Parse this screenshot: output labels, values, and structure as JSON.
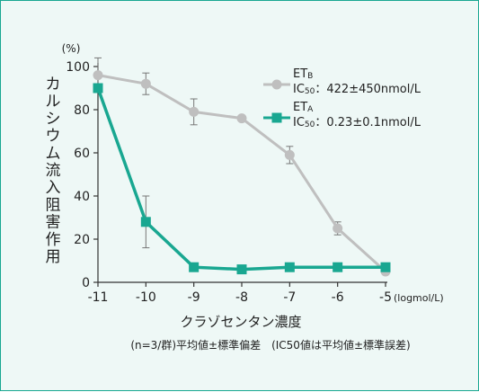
{
  "chart_data": {
    "type": "line",
    "ylabel": "カルシウム流入阻害作用",
    "yunit": "(%)",
    "xlabel": "クラゾセンタン濃度",
    "xunit": "(logmol/L)",
    "x": [
      -11,
      -10,
      -9,
      -8,
      -7,
      -6,
      -5
    ],
    "xticks": [
      "-11",
      "-10",
      "-9",
      "-8",
      "-7",
      "-6",
      "-5"
    ],
    "yticks": [
      "0",
      "20",
      "40",
      "60",
      "80",
      "100"
    ],
    "xlim": [
      -11,
      -5
    ],
    "ylim": [
      0,
      100
    ],
    "series": [
      {
        "name": "ETB",
        "name_main": "ET",
        "name_sub": "B",
        "ic50_prefix": "IC",
        "ic50_sub": "50",
        "ic50_value": "：422±450nmol/L",
        "color": "#bfbfbf",
        "marker": "circle",
        "values": [
          96,
          92,
          79,
          76,
          59,
          25,
          5
        ],
        "err": [
          8,
          5,
          6,
          0,
          4,
          3,
          0
        ]
      },
      {
        "name": "ETA",
        "name_main": "ET",
        "name_sub": "A",
        "ic50_prefix": "IC",
        "ic50_sub": "50",
        "ic50_value": "：0.23±0.1nmol/L",
        "color": "#19a791",
        "marker": "square",
        "values": [
          90,
          28,
          7,
          6,
          7,
          7,
          7
        ],
        "err": [
          0,
          12,
          0,
          0,
          0,
          0,
          0
        ]
      }
    ],
    "footnote": "(n=3/群)平均値±標準偏差　(IC50値は平均値±標準誤差)",
    "grid": false,
    "legend": "top-right"
  }
}
